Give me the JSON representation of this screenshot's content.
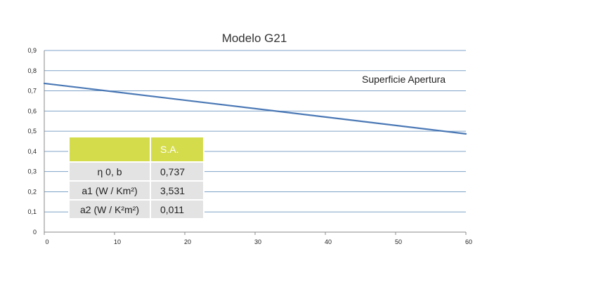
{
  "chart_data": {
    "type": "line",
    "title": "Modelo G21",
    "xlabel": "",
    "ylabel": "",
    "xlim": [
      0,
      60
    ],
    "ylim": [
      0,
      0.9
    ],
    "x_ticks": [
      "0",
      "10",
      "20",
      "30",
      "40",
      "50",
      "60"
    ],
    "y_ticks": [
      "0",
      "0,1",
      "0,2",
      "0,3",
      "0,4",
      "0,5",
      "0,6",
      "0,7",
      "0,8",
      "0,9"
    ],
    "grid": "horizontal",
    "series": [
      {
        "color": "#4a78b5",
        "x": [
          0,
          60
        ],
        "values": [
          0.737,
          0.487
        ]
      }
    ],
    "annotation": "Superficie Apertura"
  },
  "table": {
    "header_color": "#d4dc4c",
    "cell_color": "#e3e3e3",
    "header": [
      "",
      "S.A."
    ],
    "rows": [
      [
        "ƞ 0, b",
        "0,737"
      ],
      [
        "a1 (W / Km²)",
        "3,531"
      ],
      [
        "a2 (W / K²m²)",
        "0,011"
      ]
    ]
  }
}
